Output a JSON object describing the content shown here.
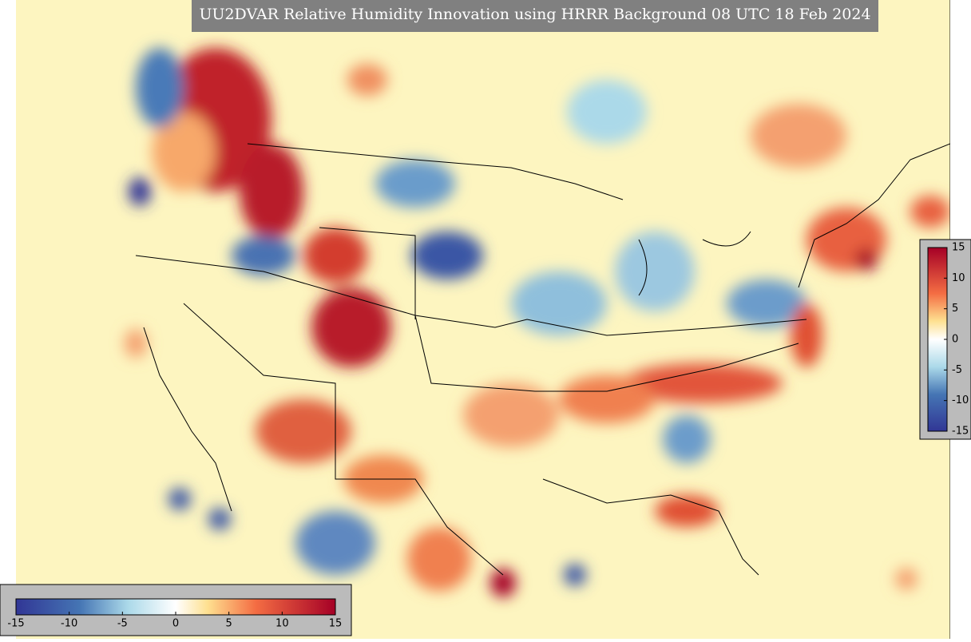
{
  "title": "UU2DVAR Relative Humidity Innovation using HRRR Background 08 UTC 18 Feb 2024",
  "colorbar_right": {
    "range": [
      -15,
      15
    ],
    "ticks": [
      15,
      10,
      5,
      0,
      -5,
      -10,
      -15
    ]
  },
  "colorbar_bottom": {
    "range": [
      -15,
      15
    ],
    "ticks": [
      -15,
      -10,
      -5,
      0,
      5,
      10,
      15
    ]
  }
}
